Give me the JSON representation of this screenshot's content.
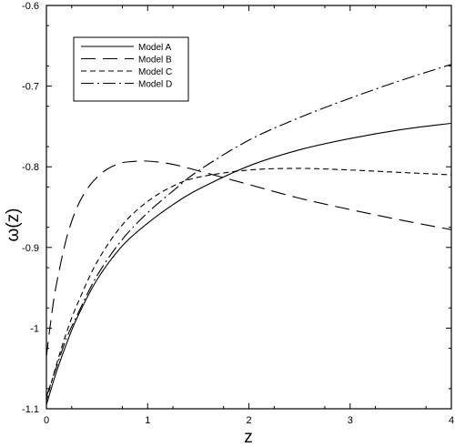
{
  "chart_data": {
    "type": "line",
    "title": "",
    "xlabel": "z",
    "ylabel": "ω(z)",
    "xlim": [
      0,
      4
    ],
    "ylim": [
      -1.1,
      -0.6
    ],
    "x_ticks": [
      0,
      1,
      2,
      3,
      4
    ],
    "y_ticks": [
      -1.1,
      -1,
      -0.9,
      -0.8,
      -0.7,
      -0.6
    ],
    "x_tick_labels": [
      "0",
      "1",
      "2",
      "3",
      "4"
    ],
    "y_tick_labels": [
      "-1.1",
      "-1",
      "-0.9",
      "-0.8",
      "-0.7",
      "-0.6"
    ],
    "grid": false,
    "legend_position": "top-left",
    "line_color": "#000000",
    "series": [
      {
        "name": "Model A",
        "style": "solid",
        "x": [
          0,
          0.1,
          0.2,
          0.3,
          0.5,
          0.75,
          1.0,
          1.25,
          1.5,
          2.0,
          2.5,
          3.0,
          3.5,
          4.0
        ],
        "y": [
          -1.095,
          -1.054,
          -1.019,
          -0.988,
          -0.94,
          -0.898,
          -0.87,
          -0.847,
          -0.828,
          -0.799,
          -0.779,
          -0.765,
          -0.754,
          -0.746
        ]
      },
      {
        "name": "Model B",
        "style": "long-dash",
        "x": [
          0,
          0.05,
          0.1,
          0.2,
          0.3,
          0.4,
          0.5,
          0.6,
          0.7,
          0.8,
          1.0,
          1.25,
          1.5,
          2.0,
          2.5,
          3.0,
          3.5,
          4.0
        ],
        "y": [
          -1.035,
          -0.985,
          -0.945,
          -0.888,
          -0.851,
          -0.828,
          -0.813,
          -0.803,
          -0.797,
          -0.794,
          -0.793,
          -0.797,
          -0.805,
          -0.822,
          -0.839,
          -0.853,
          -0.866,
          -0.878
        ]
      },
      {
        "name": "Model C",
        "style": "dash",
        "x": [
          0,
          0.1,
          0.2,
          0.3,
          0.5,
          0.75,
          1.0,
          1.25,
          1.5,
          2.0,
          2.5,
          3.0,
          3.5,
          4.0
        ],
        "y": [
          -1.09,
          -1.045,
          -1.005,
          -0.972,
          -0.918,
          -0.872,
          -0.843,
          -0.824,
          -0.813,
          -0.804,
          -0.802,
          -0.804,
          -0.807,
          -0.81
        ]
      },
      {
        "name": "Model D",
        "style": "dash-dot",
        "x": [
          0,
          0.1,
          0.2,
          0.3,
          0.5,
          0.75,
          1.0,
          1.25,
          1.5,
          2.0,
          2.5,
          3.0,
          3.5,
          4.0
        ],
        "y": [
          -1.085,
          -1.048,
          -1.012,
          -0.985,
          -0.935,
          -0.89,
          -0.857,
          -0.83,
          -0.805,
          -0.767,
          -0.739,
          -0.715,
          -0.693,
          -0.673
        ]
      }
    ]
  }
}
